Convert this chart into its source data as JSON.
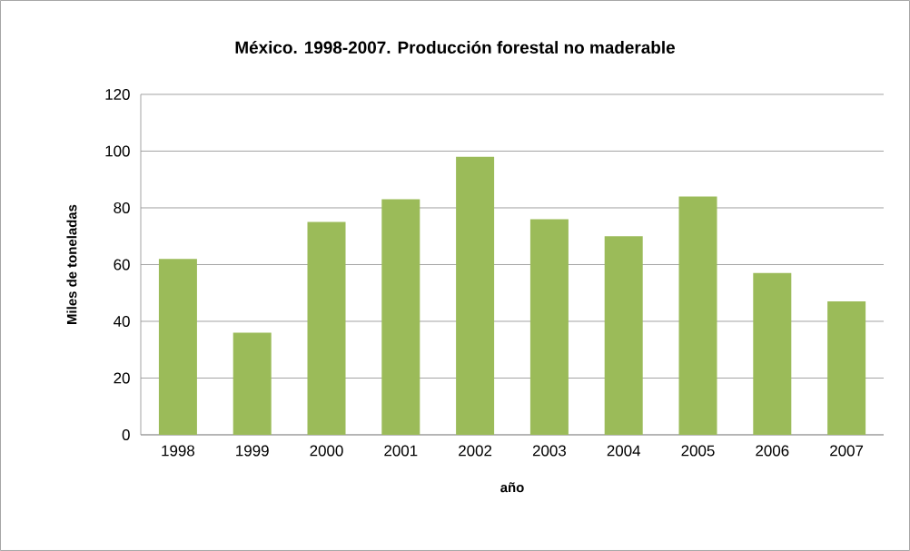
{
  "chart_data": {
    "type": "bar",
    "title": "México. 1998-2007. Producción forestal no maderable",
    "xlabel": "año",
    "ylabel": "Miles de toneladas",
    "categories": [
      "1998",
      "1999",
      "2000",
      "2001",
      "2002",
      "2003",
      "2004",
      "2005",
      "2006",
      "2007"
    ],
    "values": [
      62,
      36,
      75,
      83,
      98,
      76,
      70,
      84,
      57,
      47
    ],
    "color": "#9bbb59",
    "ylim": [
      0,
      120
    ],
    "yticks": [
      0,
      20,
      40,
      60,
      80,
      100,
      120
    ],
    "grid": "y"
  }
}
